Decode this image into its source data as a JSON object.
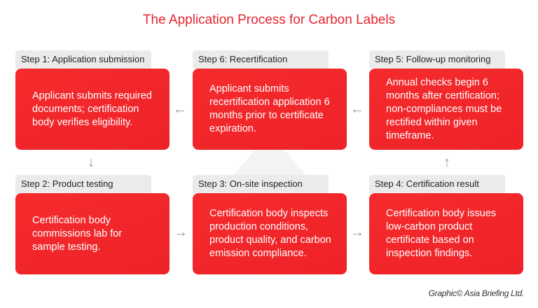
{
  "title": "The Application Process for Carbon Labels",
  "steps": [
    {
      "label": "Step 1: Application submission",
      "text": "Applicant submits required documents; certification body verifies eligibility."
    },
    {
      "label": "Step 2: Product testing",
      "text": "Certification body commissions lab for sample testing."
    },
    {
      "label": "Step 3: On-site inspection",
      "text": "Certification body inspects production conditions, product quality, and carbon emission compliance."
    },
    {
      "label": "Step 4: Certification result",
      "text": "Certification body issues low-carbon product certificate based on inspection findings."
    },
    {
      "label": "Step 5: Follow-up monitoring",
      "text": "Annual checks begin 6 months after certification; non-compliances must be rectified within given timeframe."
    },
    {
      "label": "Step 6: Recertification",
      "text": "Applicant submits recertification application 6 months prior to certificate expiration."
    }
  ],
  "arrows": {
    "left": "←",
    "right": "→",
    "up": "↑",
    "down": "↓"
  },
  "credit": "Graphic© Asia Briefing Ltd.",
  "colors": {
    "accent": "#e3262f",
    "box": "#f52b2d",
    "label_bg": "#ebebeb"
  }
}
